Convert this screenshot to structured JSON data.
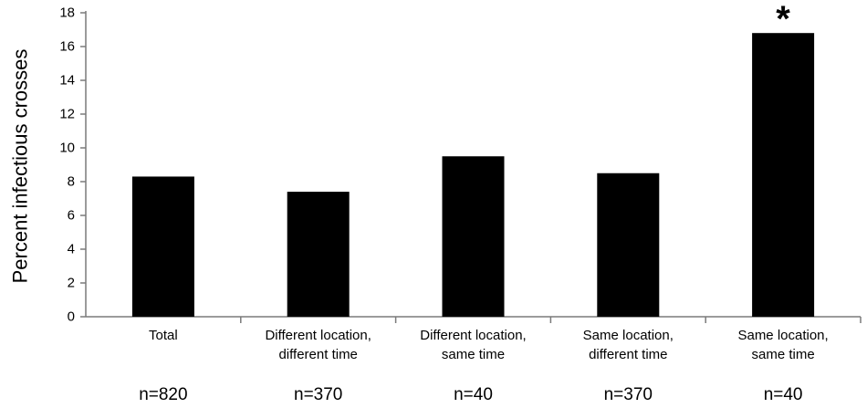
{
  "chart_data": {
    "type": "bar",
    "title": "",
    "xlabel": "",
    "ylabel": "Percent infectious crosses",
    "ylim": [
      0,
      18
    ],
    "yticks": [
      0,
      2,
      4,
      6,
      8,
      10,
      12,
      14,
      16,
      18
    ],
    "grid": false,
    "bar_color": "#000000",
    "categories": [
      [
        "Total"
      ],
      [
        "Different location,",
        "different time"
      ],
      [
        "Different location,",
        "same time"
      ],
      [
        "Same location,",
        "different time"
      ],
      [
        "Same location,",
        "same time"
      ]
    ],
    "values": [
      8.3,
      7.4,
      9.5,
      8.5,
      16.8
    ],
    "sample_sizes": [
      "n=820",
      "n=370",
      "n=40",
      "n=370",
      "n=40"
    ],
    "annotations": [
      {
        "category_index": 4,
        "text": "*"
      }
    ]
  }
}
